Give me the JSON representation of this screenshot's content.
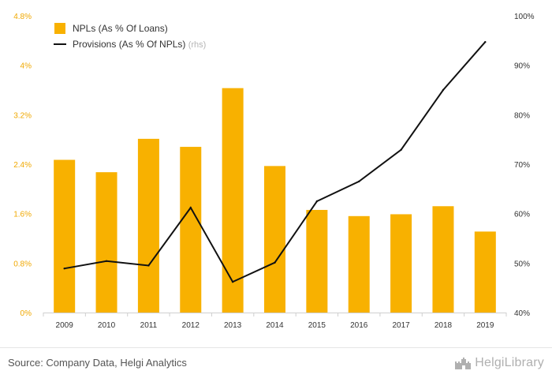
{
  "colors": {
    "bar": "#f8b100",
    "line": "#111111",
    "left_axis_text": "#f0a800",
    "grid": "#dddddd"
  },
  "chart_data": {
    "type": "bar+line",
    "categories": [
      "2009",
      "2010",
      "2011",
      "2012",
      "2013",
      "2014",
      "2015",
      "2016",
      "2017",
      "2018",
      "2019"
    ],
    "series": [
      {
        "name": "NPLs (As % Of Loans)",
        "type": "bar",
        "axis": "left",
        "values": [
          2.47,
          2.27,
          2.81,
          2.68,
          3.63,
          2.37,
          1.66,
          1.56,
          1.59,
          1.72,
          1.31
        ]
      },
      {
        "name": "Provisions (As % Of NPLs)",
        "type": "line",
        "axis": "right",
        "suffix": "(rhs)",
        "values": [
          48.9,
          50.4,
          49.5,
          61.2,
          46.2,
          50.1,
          62.5,
          66.5,
          72.9,
          85.0,
          94.7
        ]
      }
    ],
    "left_axis": {
      "ylim": [
        0,
        4.8
      ],
      "ticks": [
        0,
        0.8,
        1.6,
        2.4,
        3.2,
        4,
        4.8
      ],
      "tick_labels": [
        "0%",
        "0.8%",
        "1.6%",
        "2.4%",
        "3.2%",
        "4%",
        "4.8%"
      ]
    },
    "right_axis": {
      "ylim": [
        40,
        100
      ],
      "ticks": [
        40,
        50,
        60,
        70,
        80,
        90,
        100
      ],
      "tick_labels": [
        "40%",
        "50%",
        "60%",
        "70%",
        "80%",
        "90%",
        "100%"
      ]
    },
    "legend_position": "top-left",
    "grid": false
  },
  "footer": {
    "source": "Source: Company Data, Helgi Analytics",
    "brand": "HelgiLibrary",
    "logo_icon": "castle-icon"
  }
}
